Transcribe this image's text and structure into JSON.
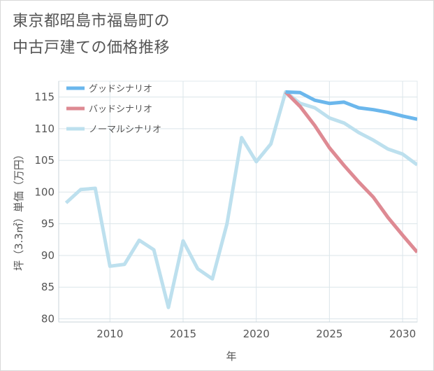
{
  "title_line1": "東京都昭島市福島町の",
  "title_line2": "中古戸建ての価格推移",
  "chart_data": {
    "type": "line",
    "title": "東京都昭島市福島町の中古戸建ての価格推移",
    "xlabel": "年",
    "ylabel": "坪（3.3㎡）単価（万円）",
    "xlim": [
      2006.5,
      2031
    ],
    "ylim": [
      79.5,
      117.5
    ],
    "xticks": [
      2010,
      2015,
      2020,
      2025,
      2030
    ],
    "yticks": [
      80,
      85,
      90,
      95,
      100,
      105,
      110,
      115
    ],
    "grid": true,
    "legend_position": "top-left",
    "series": [
      {
        "name": "グッドシナリオ",
        "color": "#6bb7ec",
        "x": [
          2022,
          2023,
          2024,
          2025,
          2026,
          2027,
          2028,
          2029,
          2030,
          2031
        ],
        "y": [
          115.8,
          115.7,
          114.5,
          114.0,
          114.2,
          113.3,
          113.0,
          112.6,
          112.0,
          111.5
        ]
      },
      {
        "name": "バッドシナリオ",
        "color": "#de8a93",
        "x": [
          2022,
          2023,
          2024,
          2025,
          2026,
          2027,
          2028,
          2029,
          2030,
          2031
        ],
        "y": [
          115.8,
          113.5,
          110.5,
          107.0,
          104.2,
          101.6,
          99.2,
          96.0,
          93.2,
          90.5
        ]
      },
      {
        "name": "ノーマルシナリオ",
        "color": "#bde0ee",
        "x": [
          2007,
          2008,
          2009,
          2010,
          2011,
          2012,
          2013,
          2014,
          2015,
          2016,
          2017,
          2018,
          2019,
          2020,
          2021,
          2022,
          2023,
          2024,
          2025,
          2026,
          2027,
          2028,
          2029,
          2030,
          2031
        ],
        "y": [
          98.3,
          100.4,
          100.6,
          88.3,
          88.6,
          92.4,
          90.9,
          81.8,
          92.3,
          87.9,
          86.3,
          95.0,
          108.6,
          104.8,
          107.6,
          115.8,
          114.0,
          113.3,
          111.7,
          110.9,
          109.4,
          108.2,
          106.8,
          106.0,
          104.3
        ]
      }
    ]
  }
}
